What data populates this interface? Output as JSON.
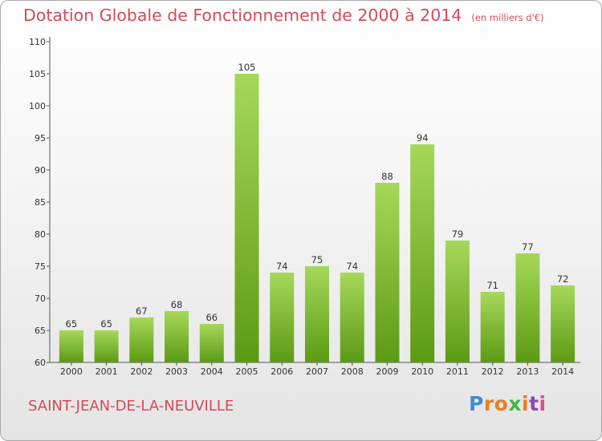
{
  "header": {
    "title": "Dotation Globale de Fonctionnement de 2000 à 2014",
    "unit": "(en milliers d'€)"
  },
  "footer": {
    "commune": "SAINT-JEAN-DE-LA-NEUVILLE",
    "logo_letters": [
      "P",
      "r",
      "o",
      "x",
      "i",
      "t",
      "i"
    ]
  },
  "colors": {
    "title": "#d54a58",
    "bar_top": "#a6d85a",
    "bar_bottom": "#5c9a14",
    "logo": [
      "#3f8fd2",
      "#e8801f",
      "#e8801f",
      "#47b549",
      "#e8801f",
      "#8a4bb0",
      "#e04a8f"
    ]
  },
  "chart_data": {
    "type": "bar",
    "title": "Dotation Globale de Fonctionnement de 2000 à 2014",
    "subtitle": "(en milliers d'€)",
    "categories": [
      "2000",
      "2001",
      "2002",
      "2003",
      "2004",
      "2005",
      "2006",
      "2007",
      "2008",
      "2009",
      "2010",
      "2011",
      "2012",
      "2013",
      "2014"
    ],
    "values": [
      65,
      65,
      67,
      68,
      66,
      105,
      74,
      75,
      74,
      88,
      94,
      79,
      71,
      77,
      72
    ],
    "ylim": [
      60,
      110
    ],
    "yticks": [
      60,
      65,
      70,
      75,
      80,
      85,
      90,
      95,
      100,
      105,
      110
    ],
    "xlabel": "",
    "ylabel": "",
    "grid": false,
    "data_labels": true
  }
}
